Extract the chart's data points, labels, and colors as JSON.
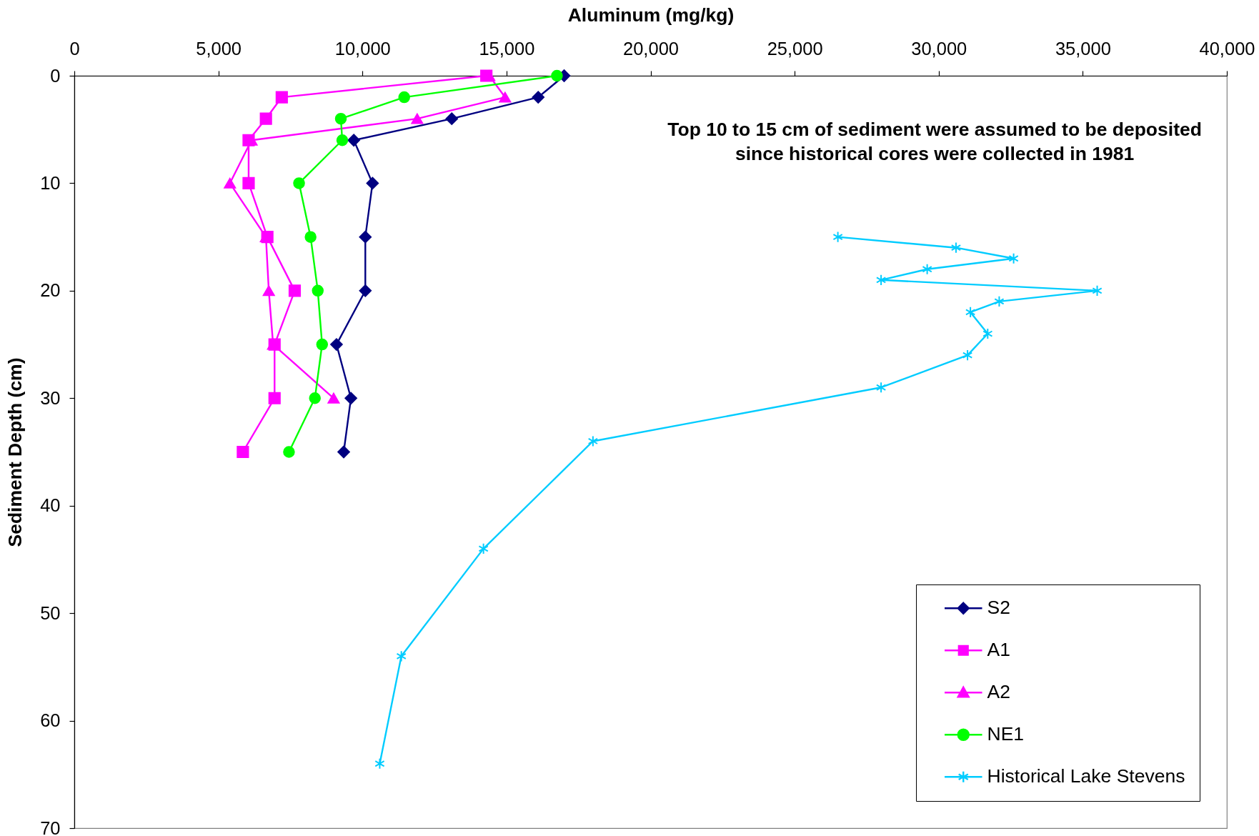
{
  "chart_data": {
    "type": "line",
    "xlabel": "Aluminum (mg/kg)",
    "ylabel": "Sediment Depth (cm)",
    "annotations": [
      "Top 10 to 15 cm of sediment were assumed to be deposited\nsince historical cores were collected in 1981"
    ],
    "xlim": [
      0,
      40000
    ],
    "xticks": [
      0,
      {
        "value": 5000,
        "label": "5,000"
      },
      {
        "value": 10000,
        "label": "10,000"
      },
      {
        "value": 15000,
        "label": "15,000"
      },
      {
        "value": 20000,
        "label": "20,000"
      },
      {
        "value": 25000,
        "label": "25,000"
      },
      {
        "value": 30000,
        "label": "30,000"
      },
      {
        "value": 35000,
        "label": "35,000"
      },
      {
        "value": 40000,
        "label": "40,000"
      }
    ],
    "ylim": [
      70,
      0
    ],
    "yticks": [
      0,
      10,
      20,
      30,
      40,
      50,
      60,
      70
    ],
    "legend": "bottom right",
    "series": [
      {
        "name": "S2",
        "color": "#000080",
        "marker": "diamond",
        "x": [
          17000,
          16100,
          13100,
          9700,
          10350,
          10100,
          10100,
          9100,
          9600,
          9350
        ],
        "values": [
          0,
          2,
          4,
          6,
          10,
          15,
          20,
          25,
          30,
          35
        ]
      },
      {
        "name": "A1",
        "color": "#ff00ff",
        "marker": "square",
        "x": [
          14300,
          7200,
          6650,
          6050,
          6050,
          6700,
          7650,
          6950,
          6950,
          5850
        ],
        "values": [
          0,
          2,
          4,
          6,
          10,
          15,
          20,
          25,
          30,
          35
        ]
      },
      {
        "name": "A2",
        "color": "#ff00ff",
        "marker": "triangle",
        "x": [
          14400,
          14950,
          11900,
          6150,
          5400,
          6650,
          6750,
          6900,
          9000
        ],
        "values": [
          0,
          2,
          4,
          6,
          10,
          15,
          20,
          25,
          30
        ]
      },
      {
        "name": "NE1",
        "color": "#00ff00",
        "marker": "circle",
        "x": [
          16750,
          11450,
          9250,
          9300,
          7800,
          8200,
          8450,
          8600,
          8350,
          7450
        ],
        "values": [
          0,
          2,
          4,
          6,
          10,
          15,
          20,
          25,
          30,
          35
        ]
      },
      {
        "name": "Historical Lake Stevens",
        "color": "#00ccff",
        "marker": "cross",
        "x": [
          26500,
          30600,
          32600,
          29600,
          28000,
          35500,
          32100,
          31100,
          31700,
          31000,
          28000,
          18000,
          14200,
          11350,
          10600
        ],
        "values": [
          15,
          16,
          17,
          18,
          19,
          20,
          21,
          22,
          24,
          26,
          29,
          34,
          44,
          54,
          64
        ]
      }
    ]
  }
}
